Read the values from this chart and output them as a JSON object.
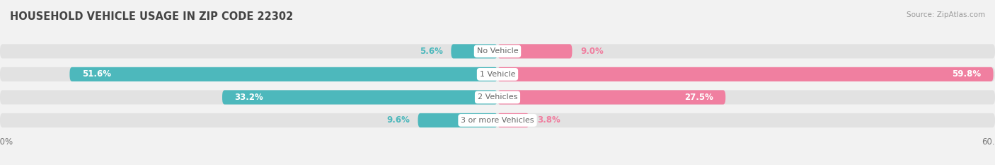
{
  "title": "HOUSEHOLD VEHICLE USAGE IN ZIP CODE 22302",
  "source": "Source: ZipAtlas.com",
  "categories": [
    "No Vehicle",
    "1 Vehicle",
    "2 Vehicles",
    "3 or more Vehicles"
  ],
  "owner_values": [
    5.6,
    51.6,
    33.2,
    9.6
  ],
  "renter_values": [
    9.0,
    59.8,
    27.5,
    3.8
  ],
  "owner_color": "#4db8bc",
  "renter_color": "#f07fa0",
  "label_color_owner": "#4db8bc",
  "label_color_renter": "#f07fa0",
  "axis_max": 60.0,
  "bg_color": "#f2f2f2",
  "bar_bg_color": "#e2e2e2",
  "bar_height": 0.62,
  "bar_gap": 0.18,
  "title_fontsize": 10.5,
  "label_fontsize": 8.5,
  "category_fontsize": 8.0,
  "legend_fontsize": 8.5,
  "axis_label_fontsize": 8.5,
  "title_color": "#444444",
  "text_white": "#ffffff",
  "text_dark": "#666666"
}
